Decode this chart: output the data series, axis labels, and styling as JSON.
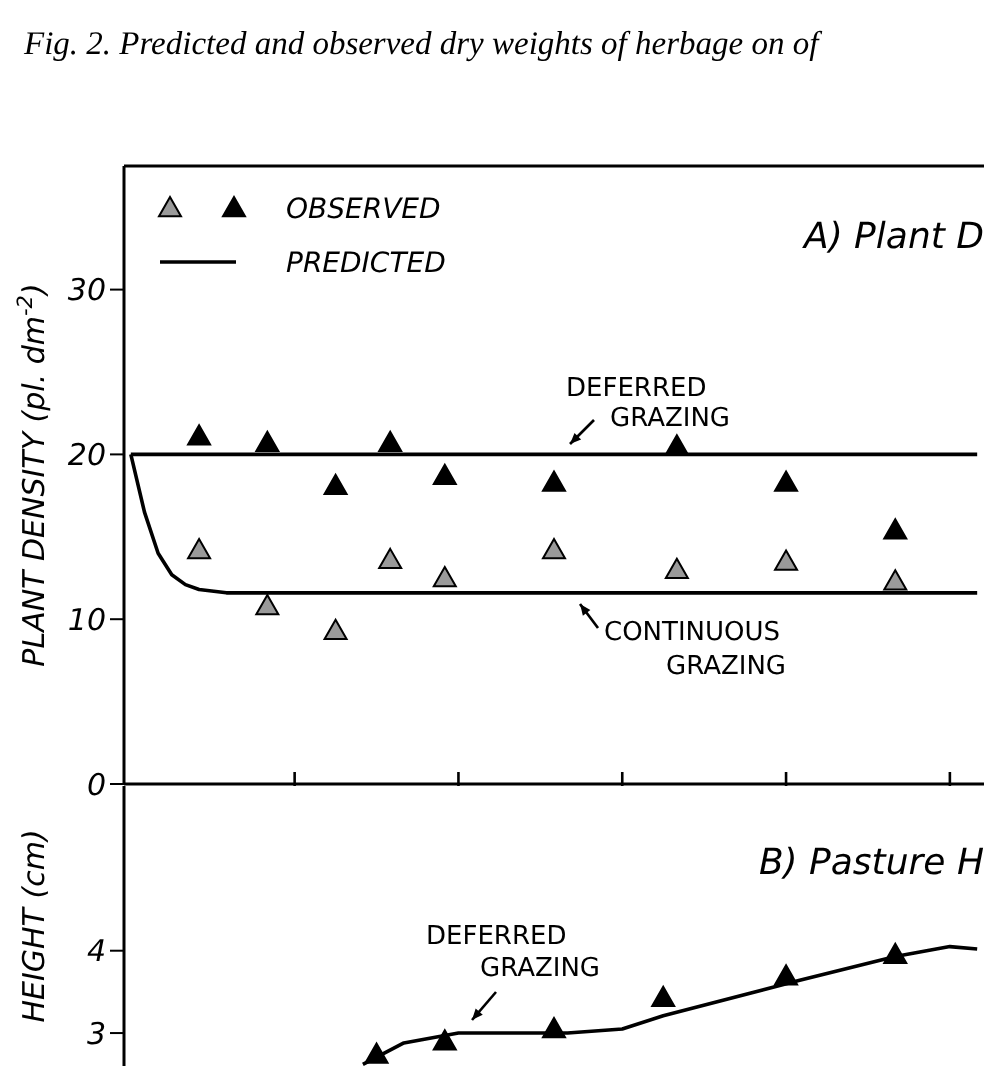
{
  "chart_data": [
    {
      "type": "scatter",
      "title": "Fig. 2.  Predicted and observed dry weights of herbage on of",
      "subtitle": "A) Plant D",
      "ylabel": "PLANT DENSITY (pl. dm$^{-2}$)",
      "categories": [
        null,
        null,
        null,
        null,
        null,
        null,
        null,
        null,
        null,
        null,
        null,
        null,
        null,
        null,
        null,
        null,
        null,
        null,
        null,
        null,
        null,
        null,
        null,
        null,
        null,
        null,
        null,
        null,
        null,
        null,
        null,
        null,
        null,
        null,
        null,
        null,
        null,
        null,
        null,
        null,
        null,
        null,
        null,
        null,
        null,
        null,
        null,
        null,
        null,
        null,
        null,
        null,
        null,
        null,
        null,
        null,
        null,
        null,
        null,
        null,
        null,
        null,
        null
      ],
      "ylim": [
        0,
        37.5
      ],
      "yticks": [
        0,
        10,
        20,
        30
      ],
      "tick_labels": "y",
      "legend": "top left",
      "line_style": "solid",
      "series": [
        {
          "marker": "triangle",
          "color": "#9a9a9a",
          "values": [
            null,
            null,
            null,
            null,
            null,
            14.2,
            null,
            null,
            null,
            null,
            10.8,
            null,
            null,
            null,
            null,
            9.3,
            null,
            null,
            null,
            13.6,
            null,
            null,
            null,
            12.5,
            null,
            null,
            null,
            null,
            null,
            null,
            null,
            14.2,
            null,
            null,
            null,
            null,
            null,
            null,
            null,
            null,
            13.0,
            null,
            null,
            null,
            null,
            null,
            null,
            null,
            13.5,
            null,
            null,
            null,
            null,
            null,
            null,
            null,
            12.3,
            null,
            null,
            null,
            null,
            null,
            null
          ]
        },
        {
          "name": "OBSERVED",
          "marker": "triangle",
          "color": "#000000",
          "values": [
            null,
            null,
            null,
            null,
            null,
            21.1,
            null,
            null,
            null,
            null,
            20.7,
            null,
            null,
            null,
            null,
            18.1,
            null,
            null,
            null,
            20.7,
            null,
            null,
            null,
            18.7,
            null,
            null,
            null,
            null,
            null,
            null,
            null,
            18.3,
            null,
            null,
            null,
            null,
            null,
            null,
            null,
            null,
            20.5,
            null,
            null,
            null,
            null,
            null,
            null,
            null,
            18.3,
            null,
            null,
            null,
            null,
            null,
            null,
            null,
            15.4,
            null,
            null,
            null,
            null,
            null,
            null
          ]
        },
        {
          "name": "PREDICTED",
          "type": "line",
          "marker": "none",
          "color": "#000000",
          "values": [
            20,
            null,
            null,
            null,
            null,
            null,
            null,
            null,
            null,
            null,
            null,
            null,
            null,
            null,
            null,
            null,
            null,
            null,
            null,
            null,
            null,
            null,
            null,
            null,
            null,
            null,
            null,
            null,
            null,
            null,
            null,
            null,
            null,
            null,
            null,
            null,
            null,
            null,
            null,
            null,
            null,
            null,
            null,
            null,
            null,
            null,
            null,
            null,
            null,
            null,
            null,
            null,
            null,
            null,
            null,
            null,
            null,
            null,
            null,
            null,
            null,
            null,
            20
          ]
        },
        {
          "type": "line",
          "marker": "none",
          "color": "#000000",
          "values": [
            20,
            16.5,
            14.0,
            12.7,
            12.1,
            11.8,
            null,
            11.6,
            null,
            null,
            null,
            null,
            null,
            null,
            null,
            null,
            null,
            null,
            null,
            null,
            null,
            null,
            null,
            null,
            null,
            null,
            null,
            null,
            null,
            null,
            null,
            null,
            null,
            null,
            null,
            null,
            null,
            null,
            null,
            null,
            null,
            null,
            null,
            null,
            null,
            null,
            null,
            null,
            null,
            null,
            null,
            null,
            null,
            null,
            null,
            null,
            null,
            null,
            null,
            null,
            null,
            null,
            11.6
          ]
        }
      ],
      "annotations": [
        "DEFERRED GRAZING",
        "CONTINUOUS GRAZING"
      ]
    },
    {
      "type": "scatter",
      "subtitle": "B) Pasture H",
      "ylabel": "HEIGHT (cm)",
      "categories": [
        null,
        null,
        null,
        null,
        null,
        null,
        null,
        null,
        null,
        null,
        null,
        null,
        null,
        null,
        null,
        null,
        null,
        null,
        null,
        null,
        null,
        null,
        null,
        null,
        null,
        null,
        null,
        null,
        null,
        null,
        null,
        null,
        null,
        null,
        null,
        null,
        null,
        null,
        null,
        null,
        null,
        null,
        null,
        null,
        null,
        null,
        null,
        null,
        null,
        null,
        null,
        null,
        null,
        null,
        null,
        null,
        null,
        null,
        null,
        null,
        null,
        null,
        null
      ],
      "ylim": [
        2.6,
        6
      ],
      "yticks": [
        3,
        4
      ],
      "tick_labels": "y",
      "line_style": "solid",
      "series": [
        {
          "marker": "triangle",
          "color": "#000000",
          "values": [
            null,
            null,
            null,
            null,
            null,
            null,
            null,
            null,
            null,
            null,
            null,
            null,
            null,
            null,
            null,
            null,
            null,
            null,
            2.74,
            null,
            null,
            null,
            null,
            2.9,
            null,
            null,
            null,
            null,
            null,
            null,
            null,
            3.05,
            null,
            null,
            null,
            null,
            null,
            null,
            null,
            3.43,
            null,
            null,
            null,
            null,
            null,
            null,
            null,
            null,
            3.69,
            null,
            null,
            null,
            null,
            null,
            null,
            null,
            3.95,
            null,
            null,
            null,
            null,
            null,
            null
          ]
        },
        {
          "type": "line",
          "marker": "none",
          "color": "#000000",
          "values": [
            null,
            null,
            null,
            null,
            null,
            null,
            null,
            null,
            null,
            null,
            null,
            null,
            null,
            null,
            null,
            null,
            null,
            2.62,
            null,
            null,
            2.88,
            null,
            null,
            null,
            3.0,
            null,
            null,
            null,
            null,
            null,
            null,
            null,
            3.0,
            null,
            null,
            null,
            3.05,
            null,
            null,
            3.21,
            null,
            null,
            null,
            null,
            null,
            null,
            null,
            null,
            null,
            3.64,
            null,
            null,
            null,
            null,
            null,
            null,
            3.93,
            null,
            null,
            null,
            4.05,
            null,
            4.02
          ]
        }
      ],
      "annotations": [
        "DEFERRED GRAZING"
      ]
    }
  ]
}
